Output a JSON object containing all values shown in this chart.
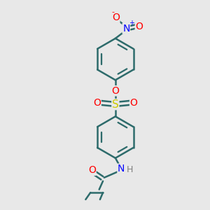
{
  "background_color": "#e8e8e8",
  "bond_color": "#2d6b6b",
  "bond_width": 1.8,
  "atom_colors": {
    "O": "#ff0000",
    "N": "#0000ff",
    "S": "#cccc00",
    "C": "#2d6b6b",
    "H": "#808080"
  }
}
